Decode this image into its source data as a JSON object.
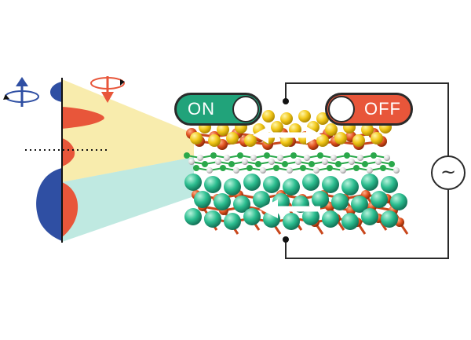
{
  "switches": {
    "on_label": "ON",
    "off_label": "OFF",
    "on_color": "#21a37a",
    "off_color": "#e8563a"
  },
  "circuit": {
    "ac_symbol": "~"
  },
  "colors": {
    "profile_blue": "#2f4fa3",
    "profile_red": "#e8563a",
    "beam_yellow": "#f3dc6a",
    "beam_teal": "#7fd3c3",
    "layer_yellow": "#f2c81a",
    "layer_orange": "#e0521f",
    "layer_teal": "#2bbd8f",
    "graphene_green": "#2aa84a",
    "graphene_white": "#e6e6e6"
  },
  "icons": {
    "left_polarization": "circular-polarization-up-icon",
    "right_polarization": "circular-polarization-down-icon"
  }
}
